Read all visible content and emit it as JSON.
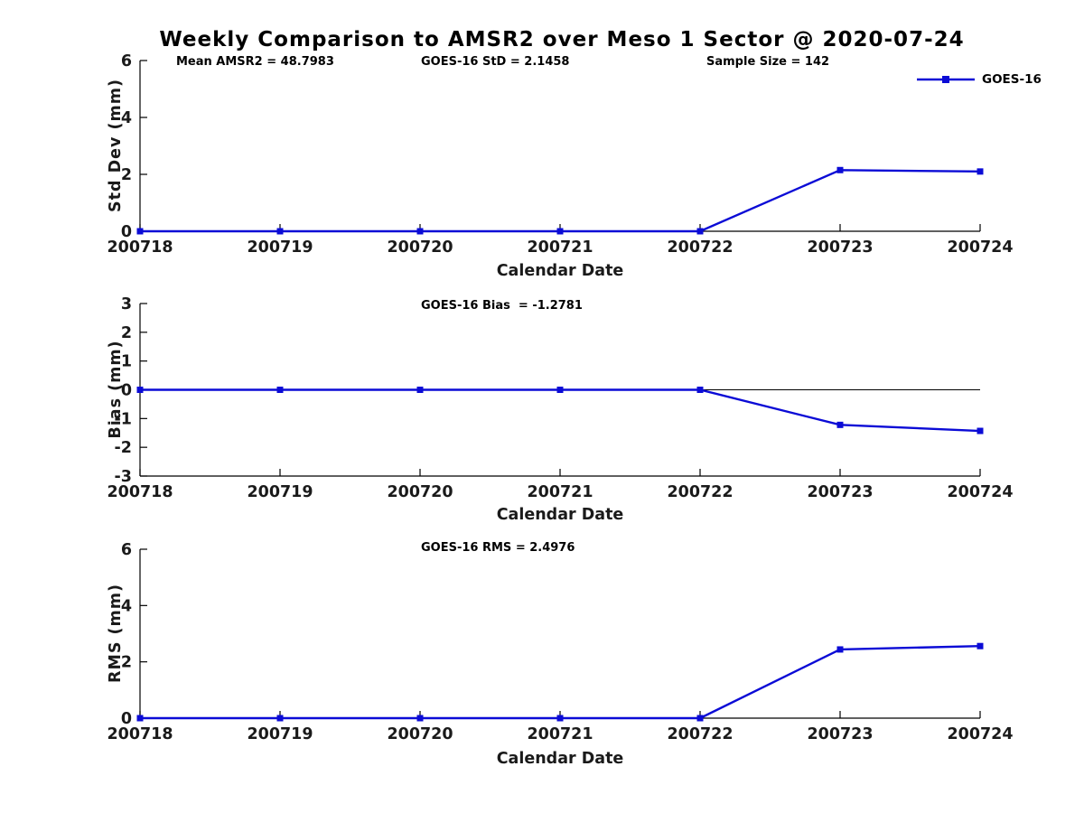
{
  "title": "Weekly Comparison to AMSR2 over Meso 1 Sector @ 2020-07-24",
  "legend": {
    "label": "GOES-16",
    "position": "top-right",
    "marker": "filled-square"
  },
  "colors": {
    "line": "#0b0bd6",
    "axis": "#000000",
    "text": "#1a1a1a"
  },
  "chart_data": [
    {
      "type": "line",
      "panel": "std-dev",
      "x": [
        "200718",
        "200719",
        "200720",
        "200721",
        "200722",
        "200723",
        "200724"
      ],
      "series": [
        {
          "name": "GOES-16",
          "values": [
            0,
            0,
            0,
            0,
            0,
            2.15,
            2.1
          ]
        }
      ],
      "xlabel": "Calendar Date",
      "ylabel": "Std Dev (mm)",
      "ylim": [
        0,
        6
      ],
      "yticks": [
        0,
        2,
        4,
        6
      ],
      "grid": false,
      "zero_line": false,
      "annotations": [
        "Mean AMSR2 = 48.7983",
        "GOES-16 StD = 2.1458",
        "Sample Size = 142"
      ]
    },
    {
      "type": "line",
      "panel": "bias",
      "x": [
        "200718",
        "200719",
        "200720",
        "200721",
        "200722",
        "200723",
        "200724"
      ],
      "series": [
        {
          "name": "GOES-16",
          "values": [
            0,
            0,
            0,
            0,
            0,
            -1.22,
            -1.43
          ]
        }
      ],
      "xlabel": "Calendar Date",
      "ylabel": "Bias (mm)",
      "ylim": [
        -3,
        3
      ],
      "yticks": [
        -3,
        -2,
        -1,
        0,
        1,
        2,
        3
      ],
      "grid": false,
      "zero_line": true,
      "annotations": [
        "GOES-16 Bias  = -1.2781"
      ]
    },
    {
      "type": "line",
      "panel": "rms",
      "x": [
        "200718",
        "200719",
        "200720",
        "200721",
        "200722",
        "200723",
        "200724"
      ],
      "series": [
        {
          "name": "GOES-16",
          "values": [
            0,
            0,
            0,
            0,
            0,
            2.44,
            2.56
          ]
        }
      ],
      "xlabel": "Calendar Date",
      "ylabel": "RMS (mm)",
      "ylim": [
        0,
        6
      ],
      "yticks": [
        0,
        2,
        4,
        6
      ],
      "grid": false,
      "zero_line": false,
      "annotations": [
        "GOES-16 RMS = 2.4976"
      ]
    }
  ]
}
